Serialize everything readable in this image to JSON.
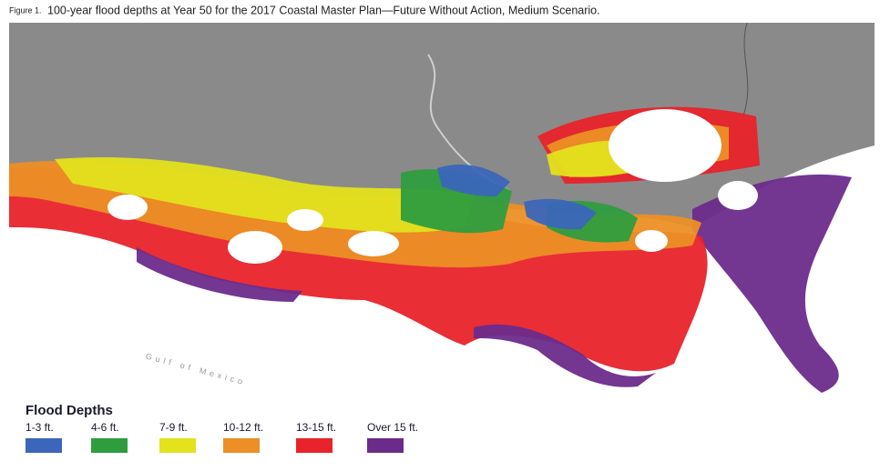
{
  "caption": {
    "label": "Figure 1.",
    "text": "100-year flood depths at Year 50 for the 2017 Coastal Master Plan—Future Without Action, Medium Scenario."
  },
  "map": {
    "labels": [
      "Gulf of Mexico"
    ]
  },
  "legend": {
    "title": "Flood Depths",
    "items": [
      {
        "label": "1-3 ft.",
        "color": "#3b66b9"
      },
      {
        "label": "4-6 ft.",
        "color": "#2f9d3e"
      },
      {
        "label": "7-9 ft.",
        "color": "#e3e21c"
      },
      {
        "label": "10-12 ft.",
        "color": "#ec8f26"
      },
      {
        "label": "13-15 ft.",
        "color": "#e8232b"
      },
      {
        "label": "Over 15 ft.",
        "color": "#6b2b8b"
      }
    ]
  }
}
